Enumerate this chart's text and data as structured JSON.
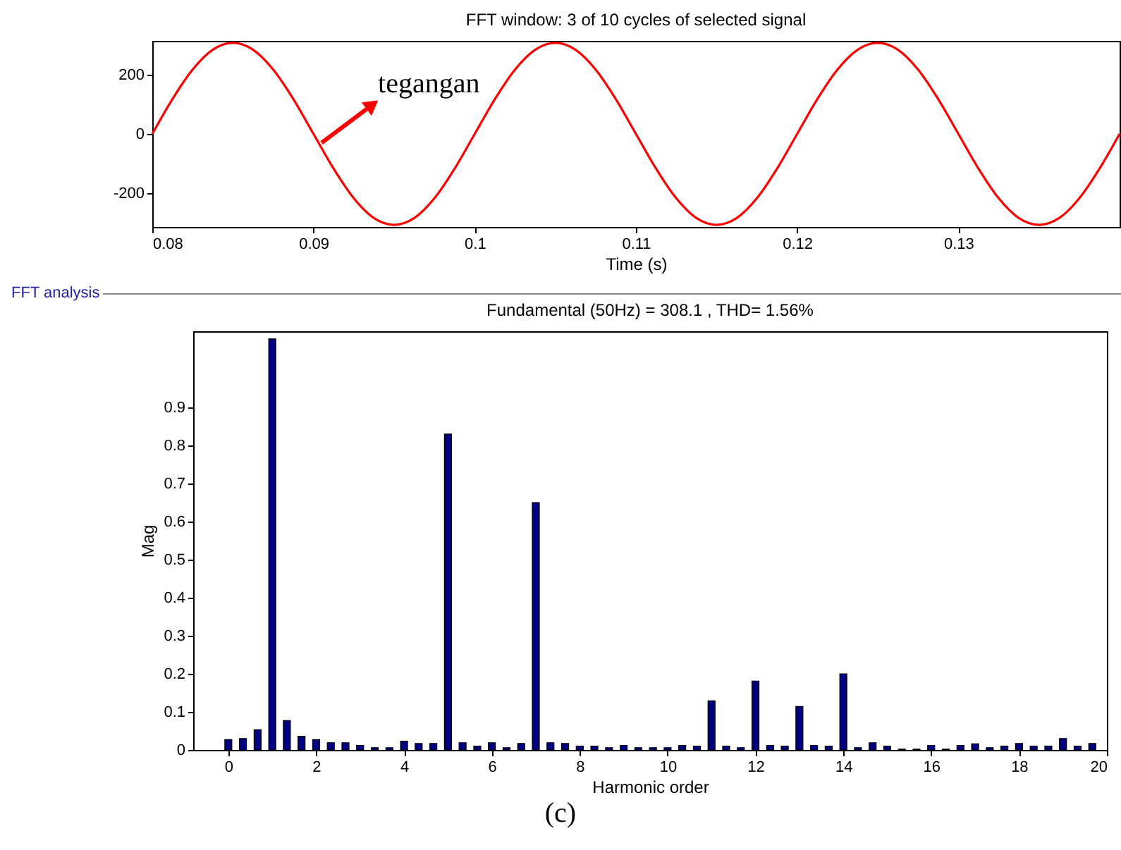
{
  "chart_data": [
    {
      "type": "line",
      "title": "FFT window: 3 of 10 cycles of selected signal",
      "xlabel": "Time (s)",
      "x": [
        0.08,
        0.08125,
        0.0825,
        0.08375,
        0.085,
        0.08625,
        0.0875,
        0.08875,
        0.09,
        0.09125,
        0.0925,
        0.09375,
        0.095,
        0.09625,
        0.0975,
        0.09875,
        0.1,
        0.10125,
        0.1025,
        0.10375,
        0.105,
        0.10625,
        0.1075,
        0.10875,
        0.11,
        0.11125,
        0.1125,
        0.11375,
        0.115,
        0.11625,
        0.1175,
        0.11875,
        0.12,
        0.12125,
        0.1225,
        0.12375,
        0.125,
        0.12625,
        0.1275,
        0.12875,
        0.13,
        0.13125,
        0.1325,
        0.13375,
        0.135,
        0.13625,
        0.1375,
        0.13875,
        0.14
      ],
      "series": [
        {
          "color": "#ff0000",
          "values": [
            0,
            118,
            218,
            285,
            308,
            285,
            218,
            118,
            0,
            -118,
            -218,
            -285,
            -308,
            -285,
            -218,
            -118,
            0,
            118,
            218,
            285,
            308,
            285,
            218,
            118,
            0,
            -118,
            -218,
            -285,
            -308,
            -285,
            -218,
            -118,
            0,
            118,
            218,
            285,
            308,
            285,
            218,
            118,
            0,
            -118,
            -218,
            -285,
            -308,
            -285,
            -218,
            -118,
            0
          ]
        }
      ],
      "xlim": [
        0.08,
        0.14
      ],
      "xticks": [
        0.08,
        0.09,
        0.1,
        0.11,
        0.12,
        0.13
      ],
      "ylim": [
        -315,
        315
      ],
      "yticks": [
        -200,
        0,
        200
      ],
      "grid": false,
      "legend": false,
      "marker": "none",
      "line_style": "solid",
      "annotations": [
        {
          "text": "tegangan",
          "x": 0.0905,
          "y": -30
        }
      ]
    },
    {
      "type": "bar",
      "title": "Fundamental (50Hz) = 308.1 , THD= 1.56%",
      "xlabel": "Harmonic order",
      "ylabel": "Mag",
      "x": [
        0,
        0.333,
        0.667,
        1,
        1.333,
        1.667,
        2,
        2.333,
        2.667,
        3,
        3.333,
        3.667,
        4,
        4.333,
        4.667,
        5,
        5.333,
        5.667,
        6,
        6.333,
        6.667,
        7,
        7.333,
        7.667,
        8,
        8.333,
        8.667,
        9,
        9.333,
        9.667,
        10,
        10.333,
        10.667,
        11,
        11.333,
        11.667,
        12,
        12.333,
        12.667,
        13,
        13.333,
        13.667,
        14,
        14.333,
        14.667,
        15,
        15.333,
        15.667,
        16,
        16.333,
        16.667,
        17,
        17.333,
        17.667,
        18,
        18.333,
        18.667,
        19,
        19.333,
        19.667
      ],
      "series": [
        {
          "color": "#000080",
          "values": [
            0.027,
            0.03,
            0.053,
            1.08,
            0.077,
            0.036,
            0.027,
            0.019,
            0.019,
            0.012,
            0.006,
            0.006,
            0.023,
            0.017,
            0.017,
            0.83,
            0.019,
            0.01,
            0.019,
            0.006,
            0.017,
            0.65,
            0.019,
            0.017,
            0.01,
            0.01,
            0.006,
            0.012,
            0.006,
            0.006,
            0.006,
            0.012,
            0.01,
            0.129,
            0.01,
            0.006,
            0.181,
            0.012,
            0.01,
            0.114,
            0.012,
            0.01,
            0.2,
            0.006,
            0.019,
            0.01,
            0.002,
            0.002,
            0.012,
            0.002,
            0.012,
            0.016,
            0.006,
            0.01,
            0.017,
            0.01,
            0.01,
            0.03,
            0.01,
            0.017
          ]
        }
      ],
      "xlim": [
        -0.8,
        20
      ],
      "xticks": [
        0,
        2,
        4,
        6,
        8,
        10,
        12,
        14,
        16,
        18,
        20
      ],
      "ylim": [
        0,
        1.1
      ],
      "yticks": [
        0,
        0.1,
        0.2,
        0.3,
        0.4,
        0.5,
        0.6,
        0.7,
        0.8,
        0.9
      ],
      "grid": false,
      "legend": false,
      "annotations": [
        "FFT analysis",
        "(c)"
      ]
    }
  ]
}
